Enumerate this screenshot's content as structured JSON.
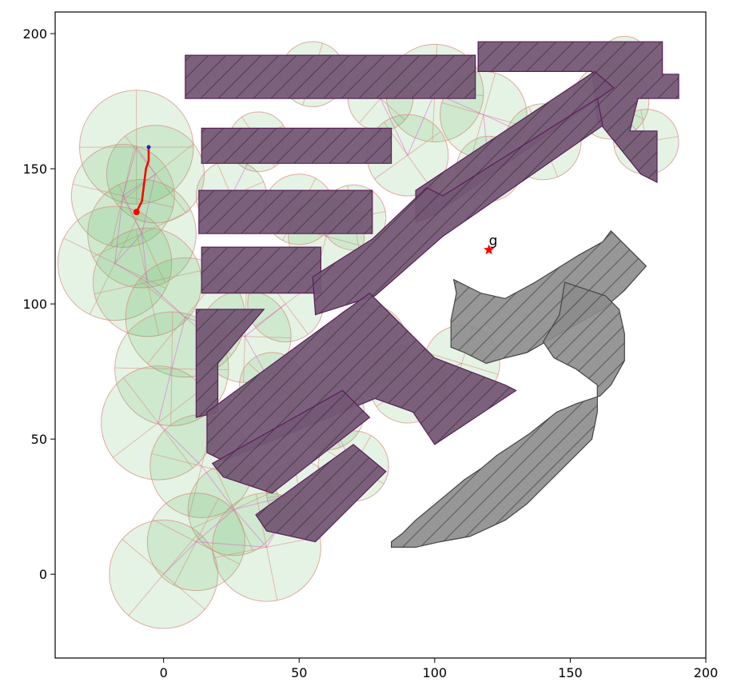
{
  "chart_data": {
    "type": "scatter",
    "title": "",
    "xlabel": "",
    "ylabel": "",
    "xlim": [
      -40,
      200
    ],
    "ylim": [
      -31,
      208
    ],
    "x_ticks": [
      0,
      50,
      100,
      150,
      200
    ],
    "y_ticks": [
      0,
      50,
      100,
      150,
      200
    ],
    "x_tick_labels": [
      "0",
      "50",
      "100",
      "150",
      "200"
    ],
    "y_tick_labels": [
      "0",
      "50",
      "100",
      "150",
      "200"
    ],
    "grid": false,
    "legend": "none",
    "colors": {
      "obstacle_fill": "#8c8c8c",
      "obstacle_edge": "#444444",
      "explored_tint": "#5a1e5a",
      "tree_edges": "#e040e0",
      "coverage_circles": "#5fb35f",
      "circle_edge": "#d98a7a",
      "path": "#ff0000",
      "goal": "#ff0000",
      "start_dot": "#2020c0"
    },
    "goal": {
      "x": 120,
      "y": 120,
      "label": "g",
      "marker": "star"
    },
    "path": {
      "name": "",
      "points": [
        [
          -5.5,
          158
        ],
        [
          -5.5,
          153
        ],
        [
          -6.5,
          150
        ],
        [
          -7,
          146
        ],
        [
          -7.5,
          142
        ],
        [
          -8,
          138
        ],
        [
          -9,
          136
        ],
        [
          -10,
          134
        ]
      ]
    },
    "path_start": {
      "x": -5.5,
      "y": 158
    },
    "path_end": {
      "x": -10,
      "y": 134
    },
    "obstacles": [
      {
        "name": "top-bar",
        "explored": true,
        "points": [
          [
            8,
            192
          ],
          [
            115,
            192
          ],
          [
            115,
            176
          ],
          [
            8,
            176
          ]
        ]
      },
      {
        "name": "top-right-arm",
        "explored": true,
        "points": [
          [
            116,
            197
          ],
          [
            184,
            197
          ],
          [
            184,
            185
          ],
          [
            190,
            185
          ],
          [
            190,
            176
          ],
          [
            175,
            176
          ],
          [
            172,
            164
          ],
          [
            182,
            164
          ],
          [
            182,
            145
          ],
          [
            176,
            148
          ],
          [
            160,
            168
          ],
          [
            158,
            186
          ],
          [
            116,
            186
          ]
        ]
      },
      {
        "name": "second-bar",
        "explored": true,
        "points": [
          [
            14,
            165
          ],
          [
            84,
            165
          ],
          [
            84,
            152
          ],
          [
            14,
            152
          ]
        ]
      },
      {
        "name": "middle-left-block",
        "explored": true,
        "points": [
          [
            13,
            142
          ],
          [
            77,
            142
          ],
          [
            77,
            126
          ],
          [
            13,
            126
          ]
        ]
      },
      {
        "name": "diag-1",
        "explored": true,
        "points": [
          [
            93,
            142
          ],
          [
            159,
            186
          ],
          [
            166,
            180
          ],
          [
            100,
            133
          ],
          [
            93,
            130
          ]
        ]
      },
      {
        "name": "e-block",
        "explored": true,
        "points": [
          [
            14,
            121
          ],
          [
            58,
            121
          ],
          [
            58,
            104
          ],
          [
            14,
            104
          ]
        ]
      },
      {
        "name": "diag-2",
        "explored": true,
        "points": [
          [
            55,
            110
          ],
          [
            77,
            124
          ],
          [
            97,
            143
          ],
          [
            103,
            140
          ],
          [
            160,
            176
          ],
          [
            162,
            166
          ],
          [
            103,
            125
          ],
          [
            78,
            103
          ],
          [
            56,
            96
          ]
        ]
      },
      {
        "name": "chevron-left",
        "explored": true,
        "points": [
          [
            12,
            98
          ],
          [
            37,
            98
          ],
          [
            20,
            78
          ],
          [
            20,
            60
          ],
          [
            12,
            58
          ]
        ]
      },
      {
        "name": "chevron-1",
        "explored": true,
        "points": [
          [
            16,
            60
          ],
          [
            76,
            104
          ],
          [
            100,
            80
          ],
          [
            126,
            70
          ],
          [
            130,
            68
          ],
          [
            100,
            48
          ],
          [
            92,
            60
          ],
          [
            78,
            65
          ],
          [
            22,
            42
          ],
          [
            16,
            45
          ]
        ]
      },
      {
        "name": "chevron-2",
        "explored": true,
        "points": [
          [
            18,
            41
          ],
          [
            66,
            68
          ],
          [
            76,
            58
          ],
          [
            40,
            30
          ],
          [
            22,
            36
          ]
        ]
      },
      {
        "name": "chevron-3",
        "explored": true,
        "points": [
          [
            34,
            22
          ],
          [
            70,
            48
          ],
          [
            82,
            38
          ],
          [
            56,
            12
          ],
          [
            38,
            16
          ]
        ]
      },
      {
        "name": "right-mid-block",
        "explored": false,
        "points": [
          [
            107,
            109
          ],
          [
            117,
            104
          ],
          [
            126,
            102
          ],
          [
            137,
            108
          ],
          [
            145,
            113
          ],
          [
            153,
            118
          ],
          [
            162,
            123
          ],
          [
            165,
            127
          ],
          [
            178,
            114
          ],
          [
            170,
            105
          ],
          [
            162,
            98
          ],
          [
            148,
            90
          ],
          [
            141,
            86
          ],
          [
            134,
            82
          ],
          [
            126,
            80
          ],
          [
            119,
            78
          ],
          [
            111,
            82
          ],
          [
            106,
            84
          ],
          [
            106,
            94
          ],
          [
            108,
            104
          ]
        ]
      },
      {
        "name": "right-bottom-block",
        "explored": false,
        "points": [
          [
            148,
            108
          ],
          [
            163,
            103
          ],
          [
            168,
            98
          ],
          [
            170,
            89
          ],
          [
            170,
            79
          ],
          [
            165,
            70
          ],
          [
            161,
            66
          ],
          [
            152,
            63
          ],
          [
            145,
            60
          ],
          [
            140,
            56
          ],
          [
            135,
            52
          ],
          [
            129,
            48
          ],
          [
            123,
            44
          ],
          [
            117,
            39
          ],
          [
            111,
            35
          ],
          [
            105,
            30
          ],
          [
            99,
            25
          ],
          [
            93,
            20
          ],
          [
            88,
            15
          ],
          [
            84,
            12
          ],
          [
            84,
            10
          ],
          [
            93,
            10
          ],
          [
            102,
            12
          ],
          [
            113,
            14
          ],
          [
            126,
            20
          ],
          [
            134,
            26
          ],
          [
            140,
            32
          ],
          [
            146,
            38
          ],
          [
            152,
            44
          ],
          [
            158,
            50
          ],
          [
            160,
            60
          ],
          [
            160,
            70
          ],
          [
            152,
            76
          ],
          [
            144,
            80
          ],
          [
            140,
            86
          ],
          [
            146,
            96
          ]
        ]
      }
    ],
    "circles": [
      {
        "x": -10,
        "y": 158,
        "r": 21
      },
      {
        "x": -3,
        "y": 148,
        "r": 18
      },
      {
        "x": -15,
        "y": 140,
        "r": 19
      },
      {
        "x": -8,
        "y": 126,
        "r": 20
      },
      {
        "x": -18,
        "y": 115,
        "r": 21
      },
      {
        "x": -6,
        "y": 108,
        "r": 20
      },
      {
        "x": 8,
        "y": 95,
        "r": 22
      },
      {
        "x": 3,
        "y": 76,
        "r": 21
      },
      {
        "x": -2,
        "y": 56,
        "r": 21
      },
      {
        "x": 14,
        "y": 40,
        "r": 19
      },
      {
        "x": 26,
        "y": 24,
        "r": 17
      },
      {
        "x": 12,
        "y": 12,
        "r": 18
      },
      {
        "x": 38,
        "y": 10,
        "r": 20
      },
      {
        "x": 0,
        "y": 0,
        "r": 20
      },
      {
        "x": 30,
        "y": 88,
        "r": 17
      },
      {
        "x": 45,
        "y": 100,
        "r": 14
      },
      {
        "x": 60,
        "y": 125,
        "r": 14
      },
      {
        "x": 25,
        "y": 140,
        "r": 13
      },
      {
        "x": 50,
        "y": 135,
        "r": 13
      },
      {
        "x": 70,
        "y": 132,
        "r": 12
      },
      {
        "x": 80,
        "y": 176,
        "r": 12
      },
      {
        "x": 100,
        "y": 178,
        "r": 18
      },
      {
        "x": 90,
        "y": 155,
        "r": 15
      },
      {
        "x": 118,
        "y": 170,
        "r": 16
      },
      {
        "x": 140,
        "y": 160,
        "r": 14
      },
      {
        "x": 165,
        "y": 175,
        "r": 14
      },
      {
        "x": 178,
        "y": 160,
        "r": 12
      },
      {
        "x": 170,
        "y": 190,
        "r": 9
      },
      {
        "x": 75,
        "y": 85,
        "r": 15
      },
      {
        "x": 90,
        "y": 70,
        "r": 14
      },
      {
        "x": 110,
        "y": 78,
        "r": 14
      },
      {
        "x": 60,
        "y": 60,
        "r": 14
      },
      {
        "x": 70,
        "y": 40,
        "r": 13
      },
      {
        "x": 50,
        "y": 30,
        "r": 12
      },
      {
        "x": 40,
        "y": 70,
        "r": 12
      },
      {
        "x": 120,
        "y": 150,
        "r": 12
      },
      {
        "x": 35,
        "y": 160,
        "r": 11
      },
      {
        "x": 55,
        "y": 185,
        "r": 12
      }
    ]
  }
}
